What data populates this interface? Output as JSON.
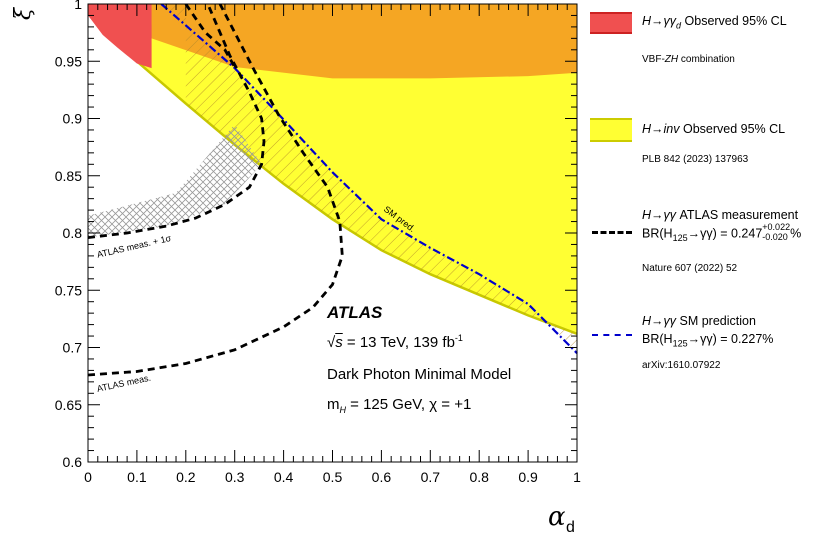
{
  "chart_data": {
    "type": "area",
    "xlabel": "α",
    "xlabel_sub": "d",
    "ylabel": "ξ",
    "xlim": [
      0,
      1
    ],
    "ylim": [
      0.6,
      1.0
    ],
    "x_ticks": [
      "0",
      "0.1",
      "0.2",
      "0.3",
      "0.4",
      "0.5",
      "0.6",
      "0.7",
      "0.8",
      "0.9",
      "1"
    ],
    "y_ticks": [
      "0.6",
      "0.65",
      "0.7",
      "0.75",
      "0.8",
      "0.85",
      "0.9",
      "0.95",
      "1"
    ],
    "regions": [
      {
        "name": "H→γγd Observed 95% CL (VBF-ZH combination)",
        "color": "#f05050",
        "boundary": [
          [
            0.0,
            0.99
          ],
          [
            0.03,
            0.973
          ],
          [
            0.06,
            0.962
          ],
          [
            0.1,
            0.948
          ],
          [
            0.13,
            0.944
          ]
        ]
      },
      {
        "name": "H→inv Observed 95% CL",
        "color": "#ffff33",
        "boundary": [
          [
            0.0,
            0.995
          ],
          [
            0.05,
            0.972
          ],
          [
            0.1,
            0.95
          ],
          [
            0.2,
            0.913
          ],
          [
            0.3,
            0.877
          ],
          [
            0.4,
            0.843
          ],
          [
            0.5,
            0.812
          ],
          [
            0.6,
            0.785
          ],
          [
            0.7,
            0.764
          ],
          [
            0.8,
            0.746
          ],
          [
            0.9,
            0.728
          ],
          [
            1.0,
            0.712
          ]
        ]
      },
      {
        "name": "orange overlap",
        "color": "#f5a623",
        "boundary": [
          [
            0.0,
            0.999
          ],
          [
            0.13,
            0.97
          ],
          [
            0.3,
            0.945
          ],
          [
            0.5,
            0.935
          ],
          [
            0.7,
            0.935
          ],
          [
            0.9,
            0.937
          ],
          [
            1.0,
            0.94
          ]
        ]
      }
    ],
    "series": [
      {
        "name": "H→γγ SM prediction",
        "style": "dashdot",
        "color": "#0000cc",
        "points": [
          [
            0.15,
            1.0
          ],
          [
            0.3,
            0.944
          ],
          [
            0.4,
            0.899
          ],
          [
            0.5,
            0.853
          ],
          [
            0.6,
            0.812
          ],
          [
            0.7,
            0.787
          ],
          [
            0.8,
            0.764
          ],
          [
            0.9,
            0.738
          ],
          [
            1.0,
            0.695
          ]
        ]
      },
      {
        "name": "H→γγ ATLAS measurement (central)",
        "style": "dashed",
        "color": "#000000",
        "points": [
          [
            0.0,
            0.676
          ],
          [
            0.1,
            0.679
          ],
          [
            0.2,
            0.686
          ],
          [
            0.3,
            0.698
          ],
          [
            0.4,
            0.718
          ],
          [
            0.46,
            0.735
          ],
          [
            0.5,
            0.755
          ],
          [
            0.52,
            0.78
          ],
          [
            0.515,
            0.81
          ],
          [
            0.49,
            0.84
          ],
          [
            0.44,
            0.87
          ],
          [
            0.39,
            0.903
          ],
          [
            0.34,
            0.942
          ],
          [
            0.27,
            1.0
          ]
        ]
      },
      {
        "name": "H→γγ ATLAS measurement (+1σ)",
        "style": "dashed",
        "color": "#000000",
        "points": [
          [
            0.0,
            0.796
          ],
          [
            0.08,
            0.8
          ],
          [
            0.16,
            0.806
          ],
          [
            0.22,
            0.813
          ],
          [
            0.28,
            0.825
          ],
          [
            0.33,
            0.84
          ],
          [
            0.355,
            0.86
          ],
          [
            0.36,
            0.88
          ],
          [
            0.355,
            0.9
          ],
          [
            0.33,
            0.923
          ],
          [
            0.29,
            0.955
          ],
          [
            0.245,
            1.0
          ]
        ]
      },
      {
        "name": "H→γγ ATLAS measurement (upper dashed)",
        "style": "dashed",
        "color": "#000000",
        "points": [
          [
            0.2,
            1.0
          ],
          [
            0.24,
            0.975
          ],
          [
            0.28,
            0.96
          ],
          [
            0.3,
            0.945
          ]
        ]
      }
    ],
    "hatched_regions": [
      {
        "name": "grey cross-hatch band",
        "color": "#aaaaaa",
        "boundary": [
          [
            0.0,
            0.796
          ],
          [
            0.16,
            0.806
          ],
          [
            0.28,
            0.825
          ],
          [
            0.355,
            0.86
          ],
          [
            0.3,
            0.895
          ],
          [
            0.18,
            0.835
          ],
          [
            0.0,
            0.815
          ]
        ]
      }
    ]
  },
  "annotations": {
    "atlas": "ATLAS",
    "sqrt_s": "s",
    "energy": " = 13 TeV, 139 fb",
    "lumi_exp": "-1",
    "model": "Dark Photon Minimal Model",
    "mh_prefix": "m",
    "mh_sub": "H",
    "mh_value": " = 125 GeV, χ = +1",
    "sm_pred": "SM pred.",
    "meas_label": "ATLAS meas.",
    "meas_1sigma": "ATLAS meas. + 1σ"
  },
  "legend": {
    "entry1": {
      "label_pre": "H→γγ",
      "label_sub": "d",
      "label_post": " Observed 95% CL",
      "sub": "VBF-ZH combination",
      "sub_pre": "VBF-",
      "sub_ital": "ZH",
      "sub_post": " combination",
      "color": "#f05050"
    },
    "entry2": {
      "label_pre": "H→inv",
      "label_post": " Observed 95% CL",
      "sub": "PLB 842 (2023) 137963",
      "color": "#ffff33"
    },
    "entry3": {
      "label_pre": "H→γγ",
      "label_post": " ATLAS measurement",
      "br_pre": "BR(H",
      "br_sub": "125",
      "br_mid": "→γγ) = 0.247",
      "br_sup": "+0.022",
      "br_subsup": "-0.020",
      "br_post": "%",
      "sub": "Nature 607 (2022) 52"
    },
    "entry4": {
      "label_pre": "H→γγ",
      "label_post": " SM prediction",
      "br_pre": "BR(H",
      "br_sub": "125",
      "br_mid": "→γγ) = 0.227%",
      "sub": "arXiv:1610.07922",
      "color": "#0000cc"
    }
  }
}
